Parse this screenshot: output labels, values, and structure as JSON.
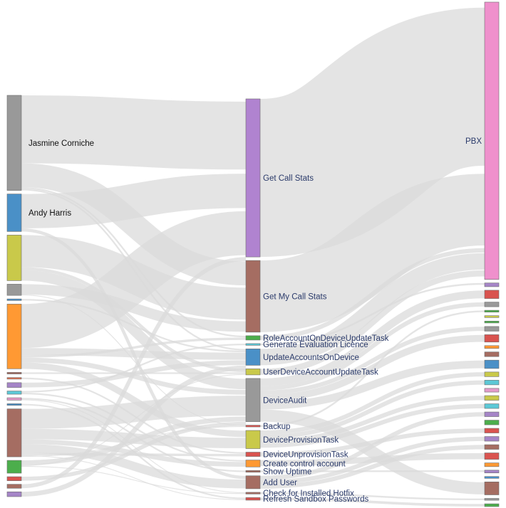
{
  "chart_data": {
    "type": "sankey",
    "title": "",
    "columns": [
      {
        "nodes": [
          {
            "id": "jasmine",
            "label": "Jasmine Corniche",
            "color": "#999999",
            "value": 119
          },
          {
            "id": "andy",
            "label": "Andy Harris",
            "color": "#4a90c7",
            "value": 47
          },
          {
            "id": "u3",
            "label": "",
            "color": "#c9c94a",
            "value": 57
          },
          {
            "id": "u4",
            "label": "",
            "color": "#999999",
            "value": 14
          },
          {
            "id": "u5",
            "label": "",
            "color": "#4a90c7",
            "value": 2
          },
          {
            "id": "u6",
            "label": "",
            "color": "#ff9933",
            "value": 81
          },
          {
            "id": "u7",
            "label": "",
            "color": "#a56d62",
            "value": 2
          },
          {
            "id": "u8",
            "label": "",
            "color": "#e07050",
            "value": 2
          },
          {
            "id": "u9",
            "label": "",
            "color": "#a585c7",
            "value": 6
          },
          {
            "id": "u10",
            "label": "",
            "color": "#5cc8d6",
            "value": 4
          },
          {
            "id": "u11",
            "label": "",
            "color": "#e39bc9",
            "value": 3
          },
          {
            "id": "u12",
            "label": "",
            "color": "#4a90c7",
            "value": 2
          },
          {
            "id": "u13",
            "label": "",
            "color": "#a56d62",
            "value": 60
          },
          {
            "id": "u14",
            "label": "",
            "color": "#4cae4c",
            "value": 16
          },
          {
            "id": "u15",
            "label": "",
            "color": "#d9534f",
            "value": 5
          },
          {
            "id": "u16",
            "label": "",
            "color": "#a56d62",
            "value": 5
          },
          {
            "id": "u17",
            "label": "",
            "color": "#a585c7",
            "value": 6
          }
        ]
      },
      {
        "nodes": [
          {
            "id": "getcall",
            "label": "Get Call Stats",
            "color": "#b083d0",
            "value": 183
          },
          {
            "id": "getmy",
            "label": "Get My Call Stats",
            "color": "#a56d62",
            "value": 83
          },
          {
            "id": "role",
            "label": "RoleAccountOnDeviceUpdateTask",
            "color": "#4cae4c",
            "value": 5
          },
          {
            "id": "geneval",
            "label": "Generate Evaluation Licence",
            "color": "#5cc8d6",
            "value": 2
          },
          {
            "id": "updacc",
            "label": "UpdateAccountsOnDevice",
            "color": "#4a90c7",
            "value": 19
          },
          {
            "id": "userdev",
            "label": "UserDeviceAccountUpdateTask",
            "color": "#c9c94a",
            "value": 7
          },
          {
            "id": "audit",
            "label": "DeviceAudit",
            "color": "#999999",
            "value": 50
          },
          {
            "id": "backup",
            "label": "Backup",
            "color": "#d9534f",
            "value": 2
          },
          {
            "id": "provision",
            "label": "DeviceProvisionTask",
            "color": "#c9c94a",
            "value": 21
          },
          {
            "id": "unprov",
            "label": "DeviceUnprovisionTask",
            "color": "#d9534f",
            "value": 5
          },
          {
            "id": "control",
            "label": "Create control account",
            "color": "#ff9933",
            "value": 8
          },
          {
            "id": "uptime",
            "label": "Show Uptime",
            "color": "#a56d62",
            "value": 2
          },
          {
            "id": "adduser",
            "label": "Add User",
            "color": "#a56d62",
            "value": 15
          },
          {
            "id": "hotfix",
            "label": "Check for Installed Hotfix",
            "color": "#a56d62",
            "value": 2
          },
          {
            "id": "sandbox",
            "label": "Refresh Sandbox Passwords",
            "color": "#d9534f",
            "value": 3
          }
        ]
      },
      {
        "nodes": [
          {
            "id": "pbx",
            "label": "PBX",
            "color": "#ef90cc",
            "value": 300
          },
          {
            "id": "d1",
            "label": "",
            "color": "#a585c7",
            "value": 4
          },
          {
            "id": "d2",
            "label": "",
            "color": "#d9534f",
            "value": 9
          },
          {
            "id": "d3",
            "label": "",
            "color": "#999999",
            "value": 5
          },
          {
            "id": "d4",
            "label": "",
            "color": "#4cae4c",
            "value": 2
          },
          {
            "id": "d5",
            "label": "",
            "color": "#c9c94a",
            "value": 2
          },
          {
            "id": "d6",
            "label": "",
            "color": "#4cae4c",
            "value": 2
          },
          {
            "id": "d7",
            "label": "",
            "color": "#999999",
            "value": 5
          },
          {
            "id": "d8",
            "label": "",
            "color": "#d9534f",
            "value": 8
          },
          {
            "id": "d9",
            "label": "",
            "color": "#ff9933",
            "value": 3
          },
          {
            "id": "d10",
            "label": "",
            "color": "#a56d62",
            "value": 5
          },
          {
            "id": "d11",
            "label": "",
            "color": "#4a90c7",
            "value": 9
          },
          {
            "id": "d12",
            "label": "",
            "color": "#c9c94a",
            "value": 5
          },
          {
            "id": "d13",
            "label": "",
            "color": "#5cc8d6",
            "value": 5
          },
          {
            "id": "d14",
            "label": "",
            "color": "#e39bc9",
            "value": 4
          },
          {
            "id": "d15",
            "label": "",
            "color": "#c9c94a",
            "value": 5
          },
          {
            "id": "d16",
            "label": "",
            "color": "#5cc8d6",
            "value": 5
          },
          {
            "id": "d17",
            "label": "",
            "color": "#a585c7",
            "value": 5
          },
          {
            "id": "d18",
            "label": "",
            "color": "#4cae4c",
            "value": 5
          },
          {
            "id": "d19",
            "label": "",
            "color": "#d9534f",
            "value": 5
          },
          {
            "id": "d20",
            "label": "",
            "color": "#a585c7",
            "value": 5
          },
          {
            "id": "d21",
            "label": "",
            "color": "#a56d62",
            "value": 5
          },
          {
            "id": "d22",
            "label": "",
            "color": "#d9534f",
            "value": 7
          },
          {
            "id": "d23",
            "label": "",
            "color": "#ff9933",
            "value": 4
          },
          {
            "id": "d24",
            "label": "",
            "color": "#a585c7",
            "value": 3
          },
          {
            "id": "d25",
            "label": "",
            "color": "#4a90c7",
            "value": 2
          },
          {
            "id": "d26",
            "label": "",
            "color": "#a56d62",
            "value": 14
          },
          {
            "id": "d27",
            "label": "",
            "color": "#999999",
            "value": 2
          },
          {
            "id": "d28",
            "label": "",
            "color": "#4cae4c",
            "value": 3
          }
        ]
      }
    ],
    "links": [
      [
        "jasmine",
        "getcall",
        85
      ],
      [
        "jasmine",
        "getmy",
        30
      ],
      [
        "jasmine",
        "role",
        2
      ],
      [
        "jasmine",
        "updacc",
        2
      ],
      [
        "andy",
        "getcall",
        43
      ],
      [
        "andy",
        "adduser",
        4
      ],
      [
        "u3",
        "getmy",
        40
      ],
      [
        "u3",
        "userdev",
        4
      ],
      [
        "u3",
        "audit",
        13
      ],
      [
        "u4",
        "getmy",
        13
      ],
      [
        "u4",
        "backup",
        1
      ],
      [
        "u5",
        "updacc",
        2
      ],
      [
        "u6",
        "getcall",
        55
      ],
      [
        "u6",
        "updacc",
        9
      ],
      [
        "u6",
        "role",
        3
      ],
      [
        "u6",
        "audit",
        6
      ],
      [
        "u6",
        "provision",
        8
      ],
      [
        "u7",
        "userdev",
        2
      ],
      [
        "u8",
        "unprov",
        2
      ],
      [
        "u9",
        "updacc",
        6
      ],
      [
        "u10",
        "geneval",
        2
      ],
      [
        "u10",
        "control",
        2
      ],
      [
        "u11",
        "uptime",
        2
      ],
      [
        "u11",
        "hotfix",
        1
      ],
      [
        "u12",
        "sandbox",
        2
      ],
      [
        "u13",
        "audit",
        25
      ],
      [
        "u13",
        "provision",
        13
      ],
      [
        "u13",
        "control",
        6
      ],
      [
        "u13",
        "adduser",
        11
      ],
      [
        "u13",
        "unprov",
        3
      ],
      [
        "u13",
        "sandbox",
        1
      ],
      [
        "u13",
        "backup",
        1
      ],
      [
        "u14",
        "audit",
        6
      ],
      [
        "u14",
        "userdev",
        1
      ],
      [
        "u14",
        "hotfix",
        1
      ],
      [
        "u15",
        "audit",
        5
      ],
      [
        "u16",
        "getcall",
        5
      ],
      [
        "u17",
        "updacc",
        6
      ],
      [
        "getcall",
        "pbx",
        183
      ],
      [
        "getmy",
        "pbx",
        83
      ],
      [
        "role",
        "pbx",
        5
      ],
      [
        "updacc",
        "pbx",
        19
      ],
      [
        "userdev",
        "pbx",
        7
      ],
      [
        "geneval",
        "d1",
        2
      ],
      [
        "audit",
        "d2",
        9
      ],
      [
        "audit",
        "d3",
        5
      ],
      [
        "audit",
        "d7",
        5
      ],
      [
        "audit",
        "d8",
        8
      ],
      [
        "audit",
        "d11",
        9
      ],
      [
        "audit",
        "d26",
        14
      ],
      [
        "backup",
        "d4",
        2
      ],
      [
        "provision",
        "d12",
        5
      ],
      [
        "provision",
        "d13",
        5
      ],
      [
        "provision",
        "d15",
        5
      ],
      [
        "provision",
        "d16",
        5
      ],
      [
        "unprov",
        "d19",
        5
      ],
      [
        "control",
        "d22",
        7
      ],
      [
        "uptime",
        "d24",
        2
      ],
      [
        "adduser",
        "d17",
        5
      ],
      [
        "adduser",
        "d20",
        5
      ],
      [
        "adduser",
        "d21",
        5
      ],
      [
        "hotfix",
        "d27",
        2
      ],
      [
        "sandbox",
        "d28",
        3
      ]
    ]
  }
}
